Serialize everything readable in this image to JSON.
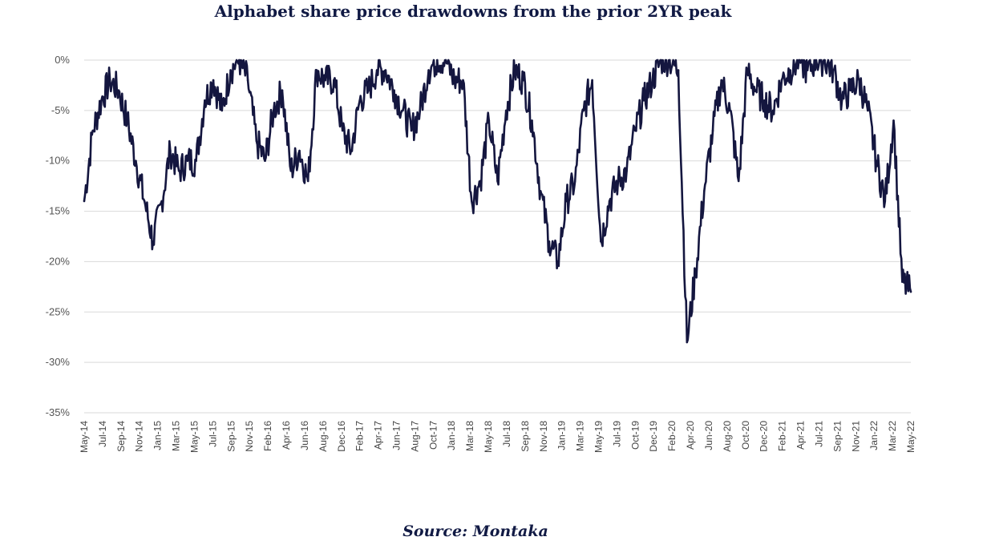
{
  "chart_data": {
    "type": "line",
    "title": "Alphabet share price drawdowns from the prior 2YR peak",
    "xlabel": "",
    "ylabel": "",
    "ylim": [
      -35,
      0
    ],
    "y_ticks": [
      "0%",
      "-5%",
      "-10%",
      "-15%",
      "-20%",
      "-25%",
      "-30%",
      "-35%"
    ],
    "y_tick_values": [
      0,
      -5,
      -10,
      -15,
      -20,
      -25,
      -30,
      -35
    ],
    "x_ticks": [
      "May-14",
      "Jul-14",
      "Sep-14",
      "Nov-14",
      "Jan-15",
      "Mar-15",
      "May-15",
      "Jul-15",
      "Sep-15",
      "Nov-15",
      "Feb-16",
      "Apr-16",
      "Jun-16",
      "Aug-16",
      "Dec-16",
      "Feb-17",
      "Apr-17",
      "Jun-17",
      "Aug-17",
      "Oct-17",
      "Jan-18",
      "Mar-18",
      "May-18",
      "Jul-18",
      "Sep-18",
      "Nov-18",
      "Jan-19",
      "Mar-19",
      "May-19",
      "Jul-19",
      "Oct-19",
      "Dec-19",
      "Feb-20",
      "Apr-20",
      "Jun-20",
      "Aug-20",
      "Oct-20",
      "Dec-20",
      "Feb-21",
      "Apr-21",
      "Jul-21",
      "Sep-21",
      "Nov-21",
      "Jan-22",
      "Mar-22",
      "May-22"
    ],
    "grid": true,
    "legend": "none",
    "line_color": "#14163f",
    "series": [
      {
        "x": [
          "2014-05",
          "2014-06",
          "2014-07",
          "2014-08",
          "2014-09",
          "2014-10",
          "2014-11",
          "2014-12",
          "2015-01",
          "2015-02",
          "2015-03",
          "2015-04",
          "2015-05",
          "2015-06",
          "2015-07",
          "2015-08",
          "2015-09",
          "2015-10",
          "2015-11",
          "2015-12",
          "2016-01",
          "2016-02",
          "2016-03",
          "2016-04",
          "2016-05",
          "2016-06",
          "2016-07",
          "2016-08",
          "2016-09",
          "2016-10",
          "2016-11",
          "2016-12",
          "2017-01",
          "2017-02",
          "2017-03",
          "2017-04",
          "2017-05",
          "2017-06",
          "2017-07",
          "2017-08",
          "2017-09",
          "2017-10",
          "2017-11",
          "2017-12",
          "2018-01",
          "2018-02",
          "2018-03",
          "2018-04",
          "2018-05",
          "2018-06",
          "2018-07",
          "2018-08",
          "2018-09",
          "2018-10",
          "2018-11",
          "2018-12",
          "2019-01",
          "2019-02",
          "2019-03",
          "2019-04",
          "2019-05",
          "2019-06",
          "2019-07",
          "2019-08",
          "2019-09",
          "2019-10",
          "2019-11",
          "2019-12",
          "2020-01",
          "2020-02",
          "2020-03",
          "2020-04",
          "2020-05",
          "2020-06",
          "2020-07",
          "2020-08",
          "2020-09",
          "2020-10",
          "2020-11",
          "2020-12",
          "2021-01",
          "2021-02",
          "2021-03",
          "2021-04",
          "2021-05",
          "2021-06",
          "2021-07",
          "2021-08",
          "2021-09",
          "2021-10",
          "2021-11",
          "2021-12",
          "2022-01",
          "2022-02",
          "2022-03",
          "2022-04",
          "2022-05"
        ],
        "values": [
          -14,
          -7,
          -4,
          -2,
          -3,
          -6,
          -10,
          -14,
          -18,
          -14,
          -9,
          -11,
          -10,
          -10,
          -4,
          -2,
          -5,
          -1,
          0,
          -2,
          -8,
          -10,
          -5,
          -3,
          -11,
          -9,
          -12,
          -1,
          -2,
          -2,
          -7,
          -9,
          -4,
          -3,
          -1,
          -1,
          -3,
          -5,
          -7,
          -5,
          -1,
          0,
          0,
          -2,
          -2,
          -14,
          -12,
          -6,
          -12,
          -5,
          -1,
          -2,
          -6,
          -13,
          -18,
          -20,
          -14,
          -12,
          -5,
          -2,
          -18,
          -14,
          -12,
          -11,
          -7,
          -4,
          -2,
          0,
          0,
          -1,
          -28,
          -21,
          -13,
          -7,
          -2,
          -5,
          -12,
          -1,
          -3,
          -4,
          -5,
          -2,
          -1,
          0,
          -1,
          0,
          0,
          -1,
          -4,
          -3,
          -2,
          -5,
          -10,
          -14,
          -6,
          -22,
          -23
        ]
      }
    ]
  },
  "source_note": "Source: Montaka"
}
